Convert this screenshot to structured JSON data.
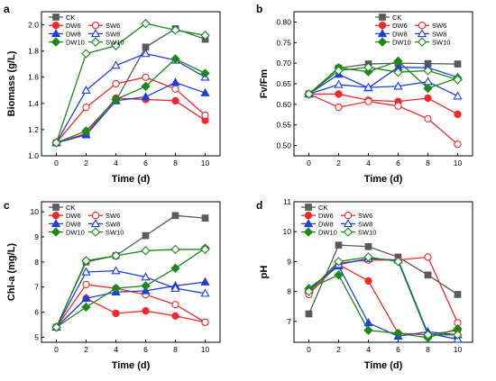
{
  "colors": {
    "CK": "#5a5a5a",
    "DW6": "#ef2a2a",
    "SW6": "#ef2a2a",
    "DW8": "#1f3fdb",
    "SW8": "#1f3fdb",
    "DW10": "#1a8a1a",
    "SW10": "#1a8a1a"
  },
  "chart_data": [
    {
      "panel": "a",
      "type": "line",
      "xlabel": "Time (d)",
      "ylabel": "Biomass (g/L)",
      "xlim": [
        -1,
        11
      ],
      "ylim": [
        1.0,
        2.1
      ],
      "xticks": [
        "0",
        "2",
        "4",
        "6",
        "8",
        "10"
      ],
      "yticks": [
        "1.0",
        "1.2",
        "1.4",
        "1.6",
        "1.8",
        "2.0"
      ],
      "legend_position": "top-left",
      "x": [
        0,
        2,
        4,
        6,
        8,
        10
      ],
      "series": [
        {
          "name": "CK",
          "marker": "square",
          "filled": true,
          "values": [
            1.1,
            1.16,
            1.42,
            1.83,
            1.97,
            1.89
          ]
        },
        {
          "name": "DW6",
          "marker": "circle",
          "filled": true,
          "values": [
            1.1,
            1.17,
            1.44,
            1.43,
            1.42,
            1.27
          ]
        },
        {
          "name": "SW6",
          "marker": "circle",
          "filled": false,
          "values": [
            1.1,
            1.37,
            1.55,
            1.6,
            1.51,
            1.31
          ]
        },
        {
          "name": "DW8",
          "marker": "triangle",
          "filled": true,
          "values": [
            1.1,
            1.16,
            1.42,
            1.45,
            1.56,
            1.48
          ]
        },
        {
          "name": "SW8",
          "marker": "triangle",
          "filled": false,
          "values": [
            1.1,
            1.5,
            1.69,
            1.78,
            1.73,
            1.6
          ]
        },
        {
          "name": "DW10",
          "marker": "diamond",
          "filled": true,
          "values": [
            1.1,
            1.19,
            1.43,
            1.53,
            1.74,
            1.63
          ]
        },
        {
          "name": "SW10",
          "marker": "diamond",
          "filled": false,
          "values": [
            1.1,
            1.78,
            1.84,
            2.01,
            1.96,
            1.92
          ]
        }
      ]
    },
    {
      "panel": "b",
      "type": "line",
      "xlabel": "Time (d)",
      "ylabel": "Fv/Fm",
      "xlim": [
        -1,
        11
      ],
      "ylim": [
        0.475,
        0.825
      ],
      "xticks": [
        "0",
        "2",
        "4",
        "6",
        "8",
        "10"
      ],
      "yticks": [
        "0.50",
        "0.55",
        "0.60",
        "0.65",
        "0.70",
        "0.75",
        "0.80"
      ],
      "legend_position": "top-right",
      "x": [
        0,
        2,
        4,
        6,
        8,
        10
      ],
      "series": [
        {
          "name": "CK",
          "marker": "square",
          "filled": true,
          "values": [
            0.625,
            0.688,
            0.698,
            0.7,
            0.699,
            0.698
          ]
        },
        {
          "name": "DW6",
          "marker": "circle",
          "filled": true,
          "values": [
            0.625,
            0.625,
            0.61,
            0.607,
            0.615,
            0.576
          ]
        },
        {
          "name": "SW6",
          "marker": "circle",
          "filled": false,
          "values": [
            0.625,
            0.593,
            0.607,
            0.596,
            0.565,
            0.503
          ]
        },
        {
          "name": "DW8",
          "marker": "triangle",
          "filled": true,
          "values": [
            0.625,
            0.673,
            0.64,
            0.69,
            0.689,
            0.666
          ]
        },
        {
          "name": "SW8",
          "marker": "triangle",
          "filled": false,
          "values": [
            0.625,
            0.648,
            0.641,
            0.644,
            0.655,
            0.62
          ]
        },
        {
          "name": "DW10",
          "marker": "diamond",
          "filled": true,
          "values": [
            0.625,
            0.689,
            0.679,
            0.705,
            0.639,
            0.664
          ]
        },
        {
          "name": "SW10",
          "marker": "diamond",
          "filled": false,
          "values": [
            0.625,
            0.682,
            0.69,
            0.678,
            0.682,
            0.66
          ]
        }
      ]
    },
    {
      "panel": "c",
      "type": "line",
      "xlabel": "Time (d)",
      "ylabel": "Chl-a (mg/L)",
      "xlim": [
        -1,
        11
      ],
      "ylim": [
        4.8,
        10.4
      ],
      "xticks": [
        "0",
        "2",
        "4",
        "6",
        "8",
        "10"
      ],
      "yticks": [
        "5",
        "6",
        "7",
        "8",
        "9",
        "10"
      ],
      "legend_position": "top-left",
      "x": [
        0,
        2,
        4,
        6,
        8,
        10
      ],
      "series": [
        {
          "name": "CK",
          "marker": "square",
          "filled": true,
          "values": [
            5.4,
            8.0,
            8.25,
            9.05,
            9.85,
            9.75
          ]
        },
        {
          "name": "DW6",
          "marker": "circle",
          "filled": true,
          "values": [
            5.4,
            6.55,
            5.95,
            6.05,
            5.85,
            5.6
          ]
        },
        {
          "name": "SW6",
          "marker": "circle",
          "filled": false,
          "values": [
            5.4,
            7.1,
            6.95,
            6.7,
            6.3,
            5.6
          ]
        },
        {
          "name": "DW8",
          "marker": "triangle",
          "filled": true,
          "values": [
            5.4,
            6.55,
            6.8,
            6.85,
            7.05,
            7.2
          ]
        },
        {
          "name": "SW8",
          "marker": "triangle",
          "filled": false,
          "values": [
            5.4,
            7.6,
            7.65,
            7.4,
            6.95,
            6.75
          ]
        },
        {
          "name": "DW10",
          "marker": "diamond",
          "filled": true,
          "values": [
            5.4,
            6.2,
            6.95,
            7.05,
            7.75,
            8.55
          ]
        },
        {
          "name": "SW10",
          "marker": "diamond",
          "filled": false,
          "values": [
            5.4,
            8.05,
            8.25,
            8.45,
            8.5,
            8.5
          ]
        }
      ]
    },
    {
      "panel": "d",
      "type": "line",
      "xlabel": "Time (d)",
      "ylabel": "pH",
      "xlim": [
        -1,
        11
      ],
      "ylim": [
        6.3,
        11.0
      ],
      "xticks": [
        "0",
        "2",
        "4",
        "6",
        "8",
        "10"
      ],
      "yticks": [
        "7",
        "8",
        "9",
        "10",
        "11"
      ],
      "legend_position": "top-left",
      "x": [
        0,
        2,
        4,
        6,
        8,
        10
      ],
      "series": [
        {
          "name": "CK",
          "marker": "square",
          "filled": true,
          "values": [
            7.25,
            9.55,
            9.5,
            9.15,
            8.55,
            7.9
          ]
        },
        {
          "name": "DW6",
          "marker": "circle",
          "filled": true,
          "values": [
            7.95,
            8.9,
            8.35,
            6.6,
            6.55,
            6.7
          ]
        },
        {
          "name": "SW6",
          "marker": "circle",
          "filled": false,
          "values": [
            7.9,
            8.95,
            9.05,
            9.05,
            9.15,
            6.95
          ]
        },
        {
          "name": "DW8",
          "marker": "triangle",
          "filled": true,
          "values": [
            8.1,
            8.85,
            6.95,
            6.5,
            6.65,
            6.55
          ]
        },
        {
          "name": "SW8",
          "marker": "triangle",
          "filled": false,
          "values": [
            8.05,
            8.9,
            9.1,
            9.05,
            6.6,
            6.4
          ]
        },
        {
          "name": "DW10",
          "marker": "diamond",
          "filled": true,
          "values": [
            8.1,
            8.55,
            6.7,
            6.6,
            6.45,
            6.75
          ]
        },
        {
          "name": "SW10",
          "marker": "diamond",
          "filled": false,
          "values": [
            8.0,
            9.0,
            9.15,
            9.0,
            6.55,
            6.55
          ]
        }
      ]
    }
  ]
}
